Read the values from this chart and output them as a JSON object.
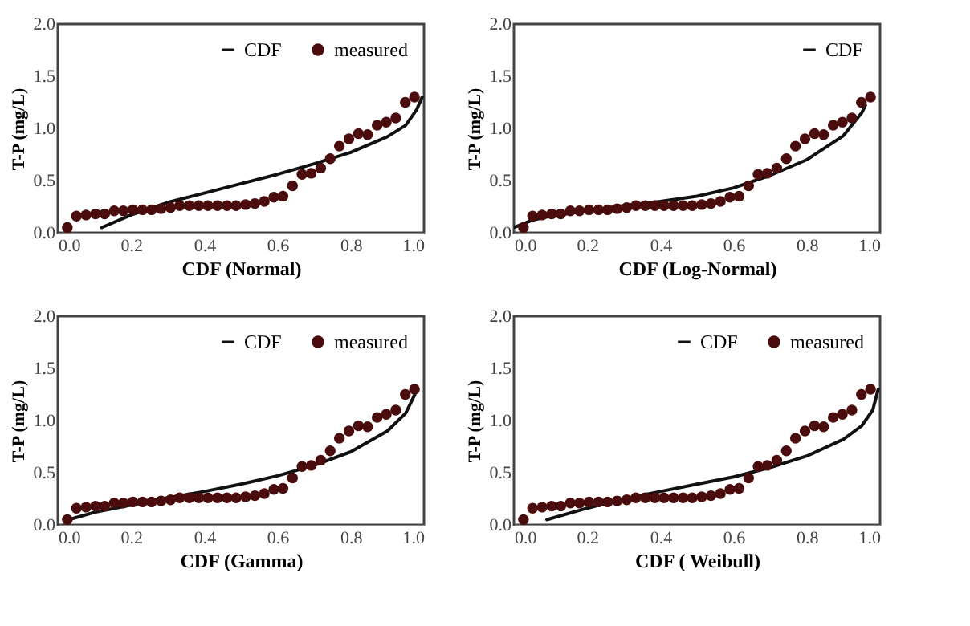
{
  "chart_data": [
    {
      "type": "scatter",
      "xlabel": "CDF (Normal)",
      "ylabel": "T-P (mg/L)",
      "xlim": [
        0,
        1
      ],
      "ylim": [
        0,
        2
      ],
      "xticks": [
        {
          "value": 0,
          "label": "0.0"
        },
        {
          "value": 0.2,
          "label": "0.2"
        },
        {
          "value": 0.4,
          "label": "0.4"
        },
        {
          "value": 0.6,
          "label": "0.6"
        },
        {
          "value": 0.8,
          "label": "0.8"
        },
        {
          "value": 1,
          "label": "1.0"
        }
      ],
      "yticks": [
        {
          "value": 0,
          "label": "0.0"
        },
        {
          "value": 0.5,
          "label": "0.5"
        },
        {
          "value": 1,
          "label": "1.0"
        },
        {
          "value": 1.5,
          "label": "1.5"
        },
        {
          "value": 2,
          "label": "2.0"
        }
      ],
      "grid": false,
      "legend": "top right",
      "series": [
        {
          "name": "CDF",
          "type": "line",
          "color": "#111111",
          "x": [
            0.12,
            0.2,
            0.3,
            0.4,
            0.5,
            0.6,
            0.7,
            0.8,
            0.9,
            0.95,
            0.98,
            0.995
          ],
          "values": [
            0.05,
            0.17,
            0.29,
            0.38,
            0.47,
            0.56,
            0.66,
            0.77,
            0.92,
            1.03,
            1.18,
            1.3
          ]
        },
        {
          "name": "measured",
          "marker": "circle",
          "color": "#4a0c0c",
          "x": [
            0.026,
            0.051,
            0.077,
            0.103,
            0.128,
            0.154,
            0.179,
            0.205,
            0.231,
            0.256,
            0.282,
            0.308,
            0.333,
            0.359,
            0.385,
            0.41,
            0.436,
            0.462,
            0.487,
            0.513,
            0.538,
            0.564,
            0.59,
            0.615,
            0.641,
            0.667,
            0.692,
            0.718,
            0.744,
            0.769,
            0.795,
            0.821,
            0.846,
            0.872,
            0.897,
            0.923,
            0.949,
            0.974
          ],
          "values": [
            0.05,
            0.16,
            0.17,
            0.18,
            0.18,
            0.21,
            0.21,
            0.22,
            0.22,
            0.22,
            0.23,
            0.24,
            0.26,
            0.26,
            0.26,
            0.26,
            0.26,
            0.26,
            0.26,
            0.27,
            0.28,
            0.3,
            0.34,
            0.35,
            0.45,
            0.56,
            0.57,
            0.62,
            0.71,
            0.83,
            0.9,
            0.95,
            0.94,
            1.03,
            1.06,
            1.1,
            1.25,
            1.3
          ]
        }
      ]
    },
    {
      "type": "scatter",
      "xlabel": "CDF (Log-Normal)",
      "ylabel": "T-P (mg/L)",
      "xlim": [
        0,
        1
      ],
      "ylim": [
        0,
        2
      ],
      "xticks": [
        {
          "value": 0,
          "label": "0.0"
        },
        {
          "value": 0.2,
          "label": "0.2"
        },
        {
          "value": 0.4,
          "label": "0.4"
        },
        {
          "value": 0.6,
          "label": "0.6"
        },
        {
          "value": 0.8,
          "label": "0.8"
        },
        {
          "value": 1,
          "label": "1.0"
        }
      ],
      "yticks": [
        {
          "value": 0,
          "label": "0.0"
        },
        {
          "value": 0.5,
          "label": "0.5"
        },
        {
          "value": 1,
          "label": "1.0"
        },
        {
          "value": 1.5,
          "label": "1.5"
        },
        {
          "value": 2,
          "label": "2.0"
        }
      ],
      "grid": false,
      "legend": "top right",
      "series": [
        {
          "name": "CDF",
          "type": "line",
          "color": "#111111",
          "x": [
            0.0,
            0.05,
            0.1,
            0.2,
            0.3,
            0.4,
            0.5,
            0.6,
            0.7,
            0.8,
            0.9,
            0.95,
            0.96
          ],
          "values": [
            0.05,
            0.12,
            0.16,
            0.21,
            0.26,
            0.3,
            0.35,
            0.43,
            0.55,
            0.7,
            0.93,
            1.15,
            1.22
          ]
        },
        {
          "marker": "circle",
          "color": "#4a0c0c",
          "x": [
            0.026,
            0.051,
            0.077,
            0.103,
            0.128,
            0.154,
            0.179,
            0.205,
            0.231,
            0.256,
            0.282,
            0.308,
            0.333,
            0.359,
            0.385,
            0.41,
            0.436,
            0.462,
            0.487,
            0.513,
            0.538,
            0.564,
            0.59,
            0.615,
            0.641,
            0.667,
            0.692,
            0.718,
            0.744,
            0.769,
            0.795,
            0.821,
            0.846,
            0.872,
            0.897,
            0.923,
            0.949,
            0.974
          ],
          "values": [
            0.05,
            0.16,
            0.17,
            0.18,
            0.18,
            0.21,
            0.21,
            0.22,
            0.22,
            0.22,
            0.23,
            0.24,
            0.26,
            0.26,
            0.26,
            0.26,
            0.26,
            0.26,
            0.26,
            0.27,
            0.28,
            0.3,
            0.34,
            0.35,
            0.45,
            0.56,
            0.57,
            0.62,
            0.71,
            0.83,
            0.9,
            0.95,
            0.94,
            1.03,
            1.06,
            1.1,
            1.25,
            1.3
          ]
        }
      ]
    },
    {
      "type": "scatter",
      "xlabel": "CDF (Gamma)",
      "ylabel": "T-P (mg/L)",
      "xlim": [
        0,
        1
      ],
      "ylim": [
        0,
        2
      ],
      "xticks": [
        {
          "value": 0,
          "label": "0.0"
        },
        {
          "value": 0.2,
          "label": "0.2"
        },
        {
          "value": 0.4,
          "label": "0.4"
        },
        {
          "value": 0.6,
          "label": "0.6"
        },
        {
          "value": 0.8,
          "label": "0.8"
        },
        {
          "value": 1,
          "label": "1.0"
        }
      ],
      "yticks": [
        {
          "value": 0,
          "label": "0.0"
        },
        {
          "value": 0.5,
          "label": "0.5"
        },
        {
          "value": 1,
          "label": "1.0"
        },
        {
          "value": 1.5,
          "label": "1.5"
        },
        {
          "value": 2,
          "label": "2.0"
        }
      ],
      "grid": false,
      "legend": "top right",
      "series": [
        {
          "name": "CDF",
          "type": "line",
          "color": "#111111",
          "x": [
            0.03,
            0.1,
            0.2,
            0.3,
            0.4,
            0.5,
            0.6,
            0.7,
            0.8,
            0.9,
            0.95,
            0.975
          ],
          "values": [
            0.05,
            0.12,
            0.19,
            0.26,
            0.32,
            0.39,
            0.47,
            0.57,
            0.7,
            0.9,
            1.07,
            1.25
          ]
        },
        {
          "name": "measured",
          "marker": "circle",
          "color": "#4a0c0c",
          "x": [
            0.026,
            0.051,
            0.077,
            0.103,
            0.128,
            0.154,
            0.179,
            0.205,
            0.231,
            0.256,
            0.282,
            0.308,
            0.333,
            0.359,
            0.385,
            0.41,
            0.436,
            0.462,
            0.487,
            0.513,
            0.538,
            0.564,
            0.59,
            0.615,
            0.641,
            0.667,
            0.692,
            0.718,
            0.744,
            0.769,
            0.795,
            0.821,
            0.846,
            0.872,
            0.897,
            0.923,
            0.949,
            0.974
          ],
          "values": [
            0.05,
            0.16,
            0.17,
            0.18,
            0.18,
            0.21,
            0.21,
            0.22,
            0.22,
            0.22,
            0.23,
            0.24,
            0.26,
            0.26,
            0.26,
            0.26,
            0.26,
            0.26,
            0.26,
            0.27,
            0.28,
            0.3,
            0.34,
            0.35,
            0.45,
            0.56,
            0.57,
            0.62,
            0.71,
            0.83,
            0.9,
            0.95,
            0.94,
            1.03,
            1.06,
            1.1,
            1.25,
            1.3
          ]
        }
      ]
    },
    {
      "type": "scatter",
      "xlabel": "CDF ( Weibull)",
      "ylabel": "T-P (mg/L)",
      "xlim": [
        0,
        1
      ],
      "ylim": [
        0,
        2
      ],
      "xticks": [
        {
          "value": 0,
          "label": "0.0"
        },
        {
          "value": 0.2,
          "label": "0.2"
        },
        {
          "value": 0.4,
          "label": "0.4"
        },
        {
          "value": 0.6,
          "label": "0.6"
        },
        {
          "value": 0.8,
          "label": "0.8"
        },
        {
          "value": 1,
          "label": "1.0"
        }
      ],
      "yticks": [
        {
          "value": 0,
          "label": "0.0"
        },
        {
          "value": 0.5,
          "label": "0.5"
        },
        {
          "value": 1,
          "label": "1.0"
        },
        {
          "value": 1.5,
          "label": "1.5"
        },
        {
          "value": 2,
          "label": "2.0"
        }
      ],
      "grid": false,
      "legend": "top right",
      "series": [
        {
          "name": "CDF",
          "type": "line",
          "color": "#111111",
          "x": [
            0.09,
            0.2,
            0.3,
            0.4,
            0.5,
            0.6,
            0.7,
            0.8,
            0.9,
            0.95,
            0.98,
            0.995
          ],
          "values": [
            0.05,
            0.16,
            0.25,
            0.32,
            0.39,
            0.46,
            0.55,
            0.66,
            0.82,
            0.95,
            1.1,
            1.3
          ]
        },
        {
          "name": "measured",
          "marker": "circle",
          "color": "#4a0c0c",
          "x": [
            0.026,
            0.051,
            0.077,
            0.103,
            0.128,
            0.154,
            0.179,
            0.205,
            0.231,
            0.256,
            0.282,
            0.308,
            0.333,
            0.359,
            0.385,
            0.41,
            0.436,
            0.462,
            0.487,
            0.513,
            0.538,
            0.564,
            0.59,
            0.615,
            0.641,
            0.667,
            0.692,
            0.718,
            0.744,
            0.769,
            0.795,
            0.821,
            0.846,
            0.872,
            0.897,
            0.923,
            0.949,
            0.974
          ],
          "values": [
            0.05,
            0.16,
            0.17,
            0.18,
            0.18,
            0.21,
            0.21,
            0.22,
            0.22,
            0.22,
            0.23,
            0.24,
            0.26,
            0.26,
            0.26,
            0.26,
            0.26,
            0.26,
            0.26,
            0.27,
            0.28,
            0.3,
            0.34,
            0.35,
            0.45,
            0.56,
            0.57,
            0.62,
            0.71,
            0.83,
            0.9,
            0.95,
            0.94,
            1.03,
            1.06,
            1.1,
            1.25,
            1.3
          ]
        }
      ]
    }
  ]
}
